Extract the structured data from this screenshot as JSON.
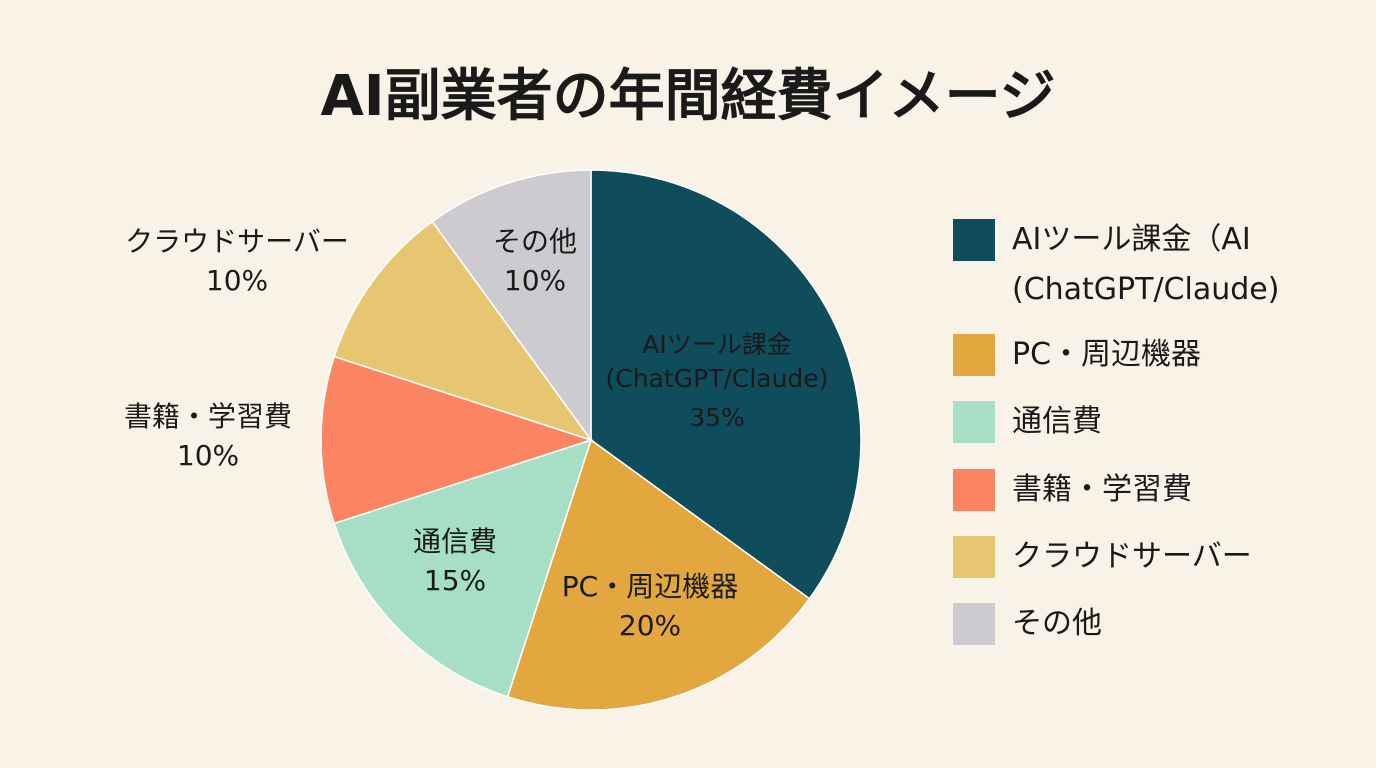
{
  "chart_data": {
    "type": "pie",
    "title": "AI副業者の年間経費イメージ",
    "categories": [
      "AIツール課金（AI\n(ChatGPT/Claude)",
      "PC・周辺機器",
      "通信費",
      "書籍・学習費",
      "クラウドサーバー",
      "その他"
    ],
    "slice_labels": [
      "AIツール課金\n(ChatGPT/Claude)",
      "PC・周辺機器",
      "通信費",
      "書籍・学習費",
      "クラウドサーバー",
      "その他"
    ],
    "values": [
      35,
      20,
      15,
      10,
      10,
      10
    ],
    "value_labels": [
      "35%",
      "20%",
      "15%",
      "10%",
      "10%",
      "10%"
    ],
    "colors": [
      "#0f4c5c",
      "#e3a73f",
      "#a6dfc5",
      "#fb8562",
      "#e6c670",
      "#cdcbd0"
    ],
    "legend": "right"
  }
}
